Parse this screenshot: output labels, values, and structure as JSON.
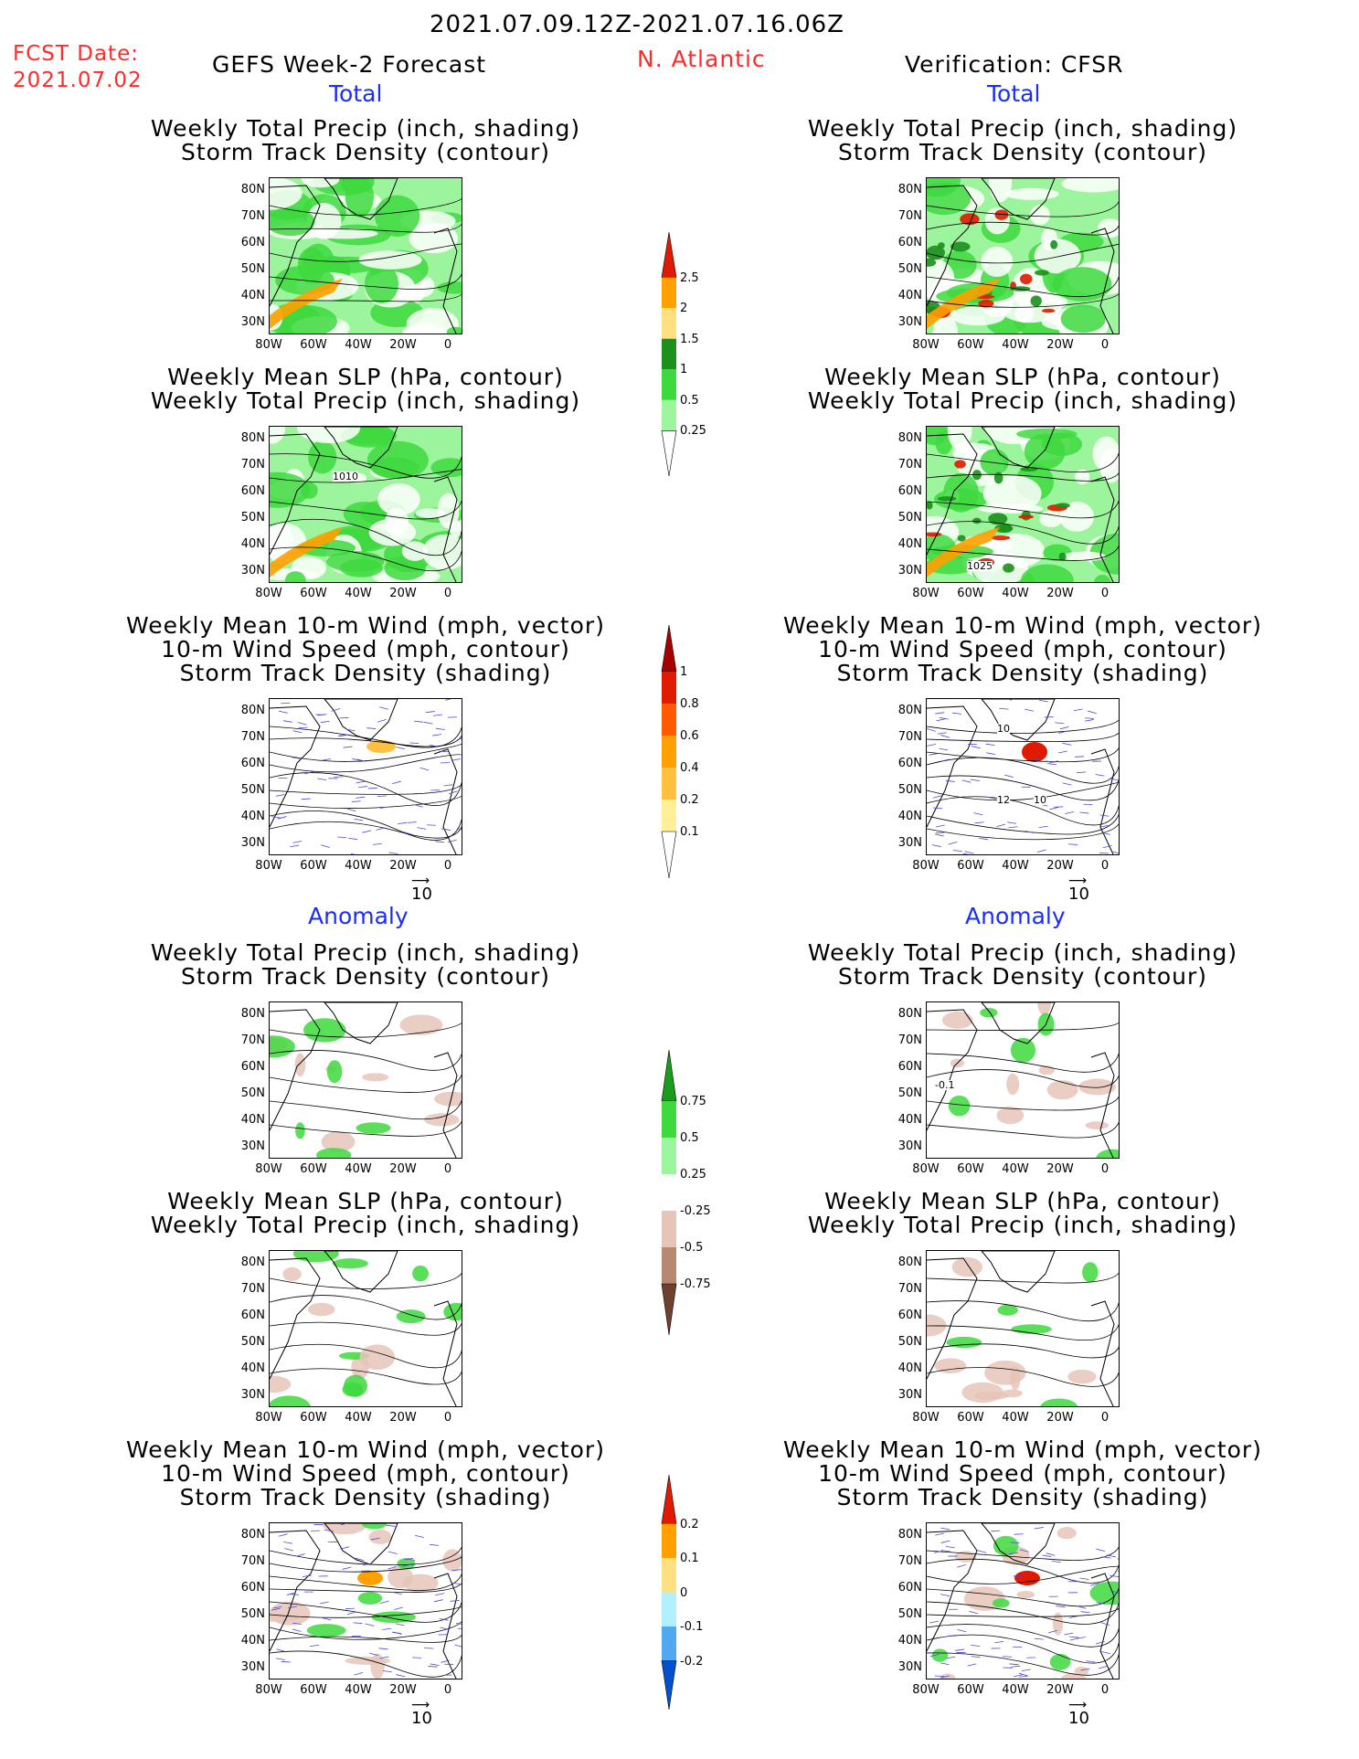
{
  "header": {
    "date_range": "2021.07.09.12Z-2021.07.16.06Z",
    "fcst_date_label": "FCST Date:",
    "fcst_date_value": "2021.07.02",
    "left_title": "GEFS Week-2 Forecast",
    "region": "N. Atlantic",
    "right_title": "Verification: CFSR"
  },
  "sections": {
    "total": "Total",
    "anomaly": "Anomaly"
  },
  "panel_titles": {
    "precip_track": [
      "Weekly Total Precip (inch, shading)",
      "Storm Track Density (contour)"
    ],
    "slp_precip": [
      "Weekly Mean SLP (hPa, contour)",
      "Weekly Total Precip (inch, shading)"
    ],
    "wind_track": [
      "Weekly Mean 10-m Wind (mph, vector)",
      "10-m Wind Speed (mph, contour)",
      "Storm Track Density (shading)"
    ]
  },
  "axes": {
    "lat_ticks": [
      "80N",
      "70N",
      "60N",
      "50N",
      "40N",
      "30N"
    ],
    "lon_ticks": [
      "80W",
      "60W",
      "40W",
      "20W",
      "0"
    ]
  },
  "contour_labels": {
    "gefs_total_slp": "1010",
    "cfsr_total_slp": "1025",
    "cfsr_total_wind_a": "10",
    "cfsr_total_wind_b": "12",
    "cfsr_total_wind_c": "10",
    "cfsr_anom_precip": "-0.1"
  },
  "vector_ref": "10",
  "colorbars": {
    "total_precip": {
      "labels": [
        "2.5",
        "2",
        "1.5",
        "1",
        "0.5",
        "0.25"
      ],
      "colors": [
        "#e01a00",
        "#ff9f00",
        "#ffe080",
        "#1c8f1c",
        "#3ed93e",
        "#9cf59c",
        "#ffffff"
      ]
    },
    "total_track": {
      "labels": [
        "1",
        "0.8",
        "0.6",
        "0.4",
        "0.2",
        "0.1"
      ],
      "colors": [
        "#a60000",
        "#e01a00",
        "#ff5a00",
        "#ff9f00",
        "#ffc040",
        "#ffef99",
        "#ffffff"
      ]
    },
    "anom_precip": {
      "labels": [
        "0.75",
        "0.5",
        "0.25",
        "-0.25",
        "-0.5",
        "-0.75"
      ],
      "colors": [
        "#1c9c1c",
        "#3ed93e",
        "#9cf59c",
        "#ffffff",
        "#e6c4b8",
        "#b88870",
        "#6e4030"
      ]
    },
    "anom_track": {
      "labels": [
        "0.2",
        "0.1",
        "0",
        "-0.1",
        "-0.2"
      ],
      "colors": [
        "#e01a00",
        "#ff9f00",
        "#ffe080",
        "#b0f0ff",
        "#50a8f0",
        "#0050d0"
      ]
    }
  }
}
